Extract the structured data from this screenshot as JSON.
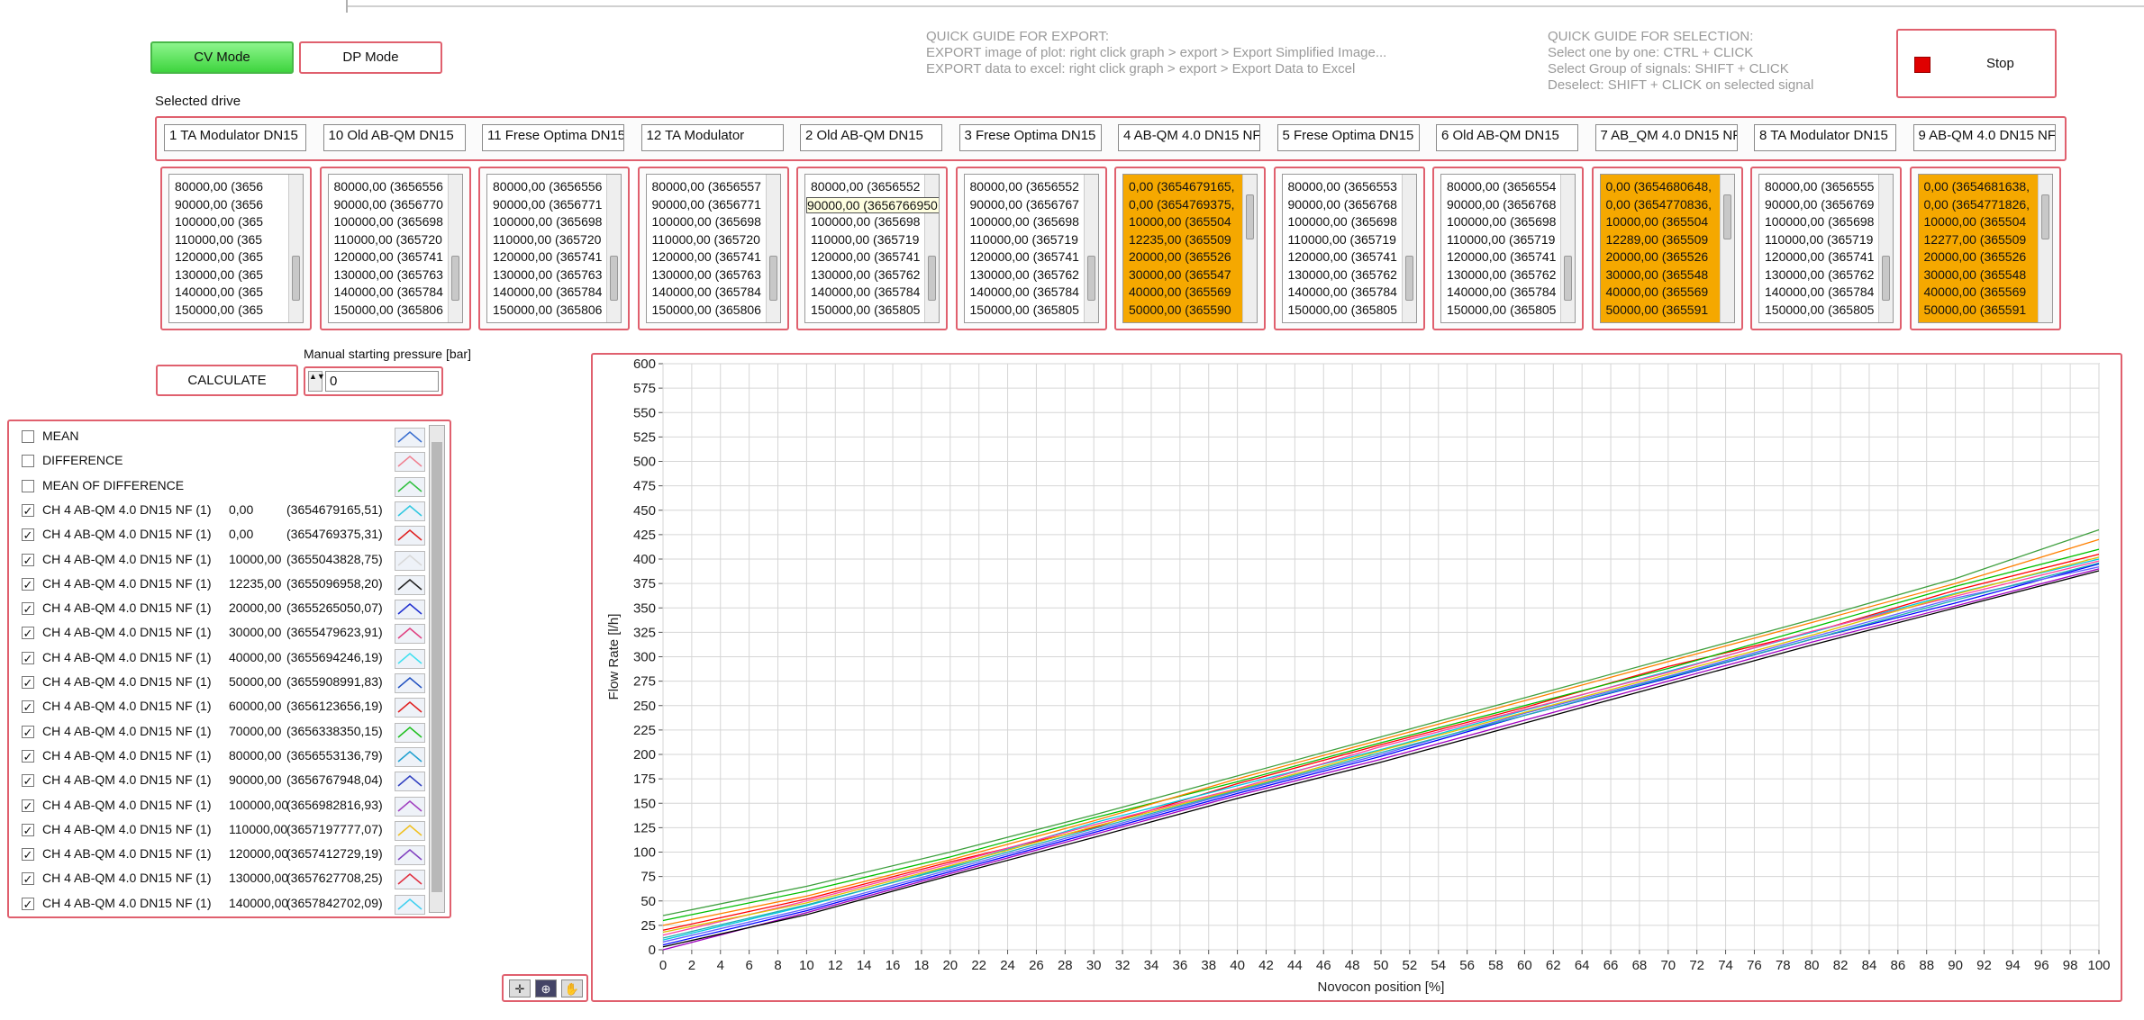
{
  "mode_buttons": [
    {
      "label": "CV Mode",
      "active": true
    },
    {
      "label": "DP Mode",
      "active": false
    }
  ],
  "export_guide": [
    "QUICK GUIDE FOR EXPORT:",
    "EXPORT image of plot: right click graph > export  > Export Simplified Image...",
    "EXPORT data to excel:   right click graph > export  > Export Data to Excel"
  ],
  "selection_guide": [
    "QUICK GUIDE FOR SELECTION:",
    "Select one by one: CTRL +  CLICK",
    "Select Group of signals: SHIFT + CLICK",
    "Deselect: SHIFT + CLICK on selected signal"
  ],
  "stop_button": "Stop",
  "selected_drive_label": "Selected drive",
  "drives": [
    {
      "name": "1  TA Modulator DN15",
      "highlighted": false,
      "items": [
        "80000,00   (3656",
        "90000,00   (3656",
        "100000,00  (365",
        "110000,00  (365",
        "120000,00  (365",
        "130000,00  (365",
        "140000,00  (365",
        "150000,00  (365"
      ]
    },
    {
      "name": "10 Old AB-QM DN15",
      "highlighted": false,
      "items": [
        "80000,00   (3656556",
        "90000,00   (3656770",
        "100000,00  (365698",
        "110000,00  (365720",
        "120000,00  (365741",
        "130000,00  (365763",
        "140000,00  (365784",
        "150000,00  (365806"
      ]
    },
    {
      "name": "11 Frese Optima DN15",
      "highlighted": false,
      "items": [
        "80000,00   (3656556",
        "90000,00   (3656771",
        "100000,00  (365698",
        "110000,00  (365720",
        "120000,00  (365741",
        "130000,00  (365763",
        "140000,00  (365784",
        "150000,00  (365806"
      ]
    },
    {
      "name": "12 TA Modulator",
      "highlighted": false,
      "items": [
        "80000,00   (3656557",
        "90000,00   (3656771",
        "100000,00  (365698",
        "110000,00  (365720",
        "120000,00  (365741",
        "130000,00  (365763",
        "140000,00  (365784",
        "150000,00  (365806"
      ]
    },
    {
      "name": "2 Old AB-QM DN15",
      "highlighted": false,
      "items": [
        "80000,00   (3656552",
        "90000,00   (3656766950,09)",
        "100000,00  (365698",
        "110000,00  (365719",
        "120000,00  (365741",
        "130000,00  (365762",
        "140000,00  (365784",
        "150000,00  (365805"
      ]
    },
    {
      "name": "3 Frese Optima DN15",
      "highlighted": false,
      "items": [
        "80000,00   (3656552",
        "90000,00   (3656767",
        "100000,00  (365698",
        "110000,00  (365719",
        "120000,00  (365741",
        "130000,00  (365762",
        "140000,00  (365784",
        "150000,00  (365805"
      ]
    },
    {
      "name": "4 AB-QM 4.0 DN15 NF",
      "highlighted": true,
      "items": [
        "0,00   (3654679165,",
        "0,00   (3654769375,",
        "10000,00   (365504",
        "12235,00   (365509",
        "20000,00   (365526",
        "30000,00   (365547",
        "40000,00   (365569",
        "50000,00   (365590"
      ]
    },
    {
      "name": "5 Frese Optima DN15",
      "highlighted": false,
      "items": [
        "80000,00   (3656553",
        "90000,00   (3656768",
        "100000,00  (365698",
        "110000,00  (365719",
        "120000,00  (365741",
        "130000,00  (365762",
        "140000,00  (365784",
        "150000,00  (365805"
      ]
    },
    {
      "name": "6 Old AB-QM DN15",
      "highlighted": false,
      "items": [
        "80000,00   (3656554",
        "90000,00   (3656768",
        "100000,00  (365698",
        "110000,00  (365719",
        "120000,00  (365741",
        "130000,00  (365762",
        "140000,00  (365784",
        "150000,00  (365805"
      ]
    },
    {
      "name": "7 AB_QM 4.0 DN15 NF",
      "highlighted": true,
      "items": [
        "0,00   (3654680648,",
        "0,00   (3654770836,",
        "10000,00   (365504",
        "12289,00   (365509",
        "20000,00   (365526",
        "30000,00   (365548",
        "40000,00   (365569",
        "50000,00   (365591"
      ]
    },
    {
      "name": "8 TA Modulator DN15",
      "highlighted": false,
      "items": [
        "80000,00   (3656555",
        "90000,00   (3656769",
        "100000,00  (365698",
        "110000,00  (365719",
        "120000,00  (365741",
        "130000,00  (365762",
        "140000,00  (365784",
        "150000,00  (365805"
      ]
    },
    {
      "name": "9 AB-QM 4.0 DN15 NF",
      "highlighted": true,
      "items": [
        "0,00   (3654681638,",
        "0,00   (3654771826,",
        "10000,00   (365504",
        "12277,00   (365509",
        "20000,00   (365526",
        "30000,00   (365548",
        "40000,00   (365569",
        "50000,00   (365591"
      ]
    }
  ],
  "calculate_button": "CALCULATE",
  "pressure": {
    "label": "Manual starting pressure [bar]",
    "value": "0"
  },
  "signals": [
    {
      "label": "MEAN",
      "checked": false,
      "color": "#3a6fd0"
    },
    {
      "label": "DIFFERENCE",
      "checked": false,
      "color": "#f08090"
    },
    {
      "label": "MEAN OF DIFFERENCE",
      "checked": false,
      "color": "#30c040"
    },
    {
      "label": "CH  4 AB-QM 4.0 DN15 NF (1)",
      "value": "0,00",
      "id": "(3654679165,51)",
      "checked": true,
      "color": "#30c8e0"
    },
    {
      "label": "CH  4 AB-QM 4.0 DN15 NF (1)",
      "value": "0,00",
      "id": "(3654769375,31)",
      "checked": true,
      "color": "#e02020"
    },
    {
      "label": "CH  4 AB-QM 4.0 DN15 NF (1)",
      "value": "10000,00",
      "id": "(3655043828,75)",
      "checked": true,
      "color": "#d8d8d8"
    },
    {
      "label": "CH  4 AB-QM 4.0 DN15 NF (1)",
      "value": "12235,00",
      "id": "(3655096958,20)",
      "checked": true,
      "color": "#202020"
    },
    {
      "label": "CH  4 AB-QM 4.0 DN15 NF (1)",
      "value": "20000,00",
      "id": "(3655265050,07)",
      "checked": true,
      "color": "#2030d0"
    },
    {
      "label": "CH  4 AB-QM 4.0 DN15 NF (1)",
      "value": "30000,00",
      "id": "(3655479623,91)",
      "checked": true,
      "color": "#e04080"
    },
    {
      "label": "CH  4 AB-QM 4.0 DN15 NF (1)",
      "value": "40000,00",
      "id": "(3655694246,19)",
      "checked": true,
      "color": "#40e0f0"
    },
    {
      "label": "CH  4 AB-QM 4.0 DN15 NF (1)",
      "value": "50000,00",
      "id": "(3655908991,83)",
      "checked": true,
      "color": "#2050c0"
    },
    {
      "label": "CH  4 AB-QM 4.0 DN15 NF (1)",
      "value": "60000,00",
      "id": "(3656123656,19)",
      "checked": true,
      "color": "#e02020"
    },
    {
      "label": "CH  4 AB-QM 4.0 DN15 NF (1)",
      "value": "70000,00",
      "id": "(3656338350,15)",
      "checked": true,
      "color": "#20c020"
    },
    {
      "label": "CH  4 AB-QM 4.0 DN15 NF (1)",
      "value": "80000,00",
      "id": "(3656553136,79)",
      "checked": true,
      "color": "#20a0d0"
    },
    {
      "label": "CH  4 AB-QM 4.0 DN15 NF (1)",
      "value": "90000,00",
      "id": "(3656767948,04)",
      "checked": true,
      "color": "#3040c0"
    },
    {
      "label": "CH  4 AB-QM 4.0 DN15 NF (1)",
      "value": "100000,00",
      "id": "(3656982816,93)",
      "checked": true,
      "color": "#a040c0"
    },
    {
      "label": "CH  4 AB-QM 4.0 DN15 NF (1)",
      "value": "110000,00",
      "id": "(3657197777,07)",
      "checked": true,
      "color": "#f0c020"
    },
    {
      "label": "CH  4 AB-QM 4.0 DN15 NF (1)",
      "value": "120000,00",
      "id": "(3657412729,19)",
      "checked": true,
      "color": "#8040c0"
    },
    {
      "label": "CH  4 AB-QM 4.0 DN15 NF (1)",
      "value": "130000,00",
      "id": "(3657627708,25)",
      "checked": true,
      "color": "#e03040"
    },
    {
      "label": "CH  4 AB-QM 4.0 DN15 NF (1)",
      "value": "140000,00",
      "id": "(3657842702,09)",
      "checked": true,
      "color": "#40d0f0"
    }
  ],
  "chart_data": {
    "type": "line",
    "xlabel": "Novocon position [%]",
    "ylabel": "Flow Rate [l/h]",
    "xlim": [
      0,
      100
    ],
    "ylim": [
      0,
      600
    ],
    "xticks": [
      0,
      2,
      4,
      6,
      8,
      10,
      12,
      14,
      16,
      18,
      20,
      22,
      24,
      26,
      28,
      30,
      32,
      34,
      36,
      38,
      40,
      42,
      44,
      46,
      48,
      50,
      52,
      54,
      56,
      58,
      60,
      62,
      64,
      66,
      68,
      70,
      72,
      74,
      76,
      78,
      80,
      82,
      84,
      86,
      88,
      90,
      92,
      94,
      96,
      98,
      100
    ],
    "yticks": [
      0,
      25,
      50,
      75,
      100,
      125,
      150,
      175,
      200,
      225,
      250,
      275,
      300,
      325,
      350,
      375,
      400,
      425,
      450,
      475,
      500,
      525,
      550,
      575,
      600
    ],
    "grid": true,
    "x": [
      0,
      10,
      20,
      30,
      40,
      50,
      60,
      70,
      80,
      90,
      100
    ],
    "series": [
      {
        "color": "#ff0000",
        "values": [
          20,
          52,
          90,
          125,
          170,
          210,
          248,
          290,
          325,
          368,
          405
        ]
      },
      {
        "color": "#0000ff",
        "values": [
          5,
          40,
          80,
          120,
          160,
          198,
          240,
          278,
          318,
          355,
          395
        ]
      },
      {
        "color": "#00c000",
        "values": [
          30,
          60,
          95,
          135,
          172,
          212,
          250,
          288,
          330,
          372,
          410
        ]
      },
      {
        "color": "#00c8e0",
        "values": [
          10,
          45,
          85,
          130,
          168,
          205,
          245,
          285,
          325,
          365,
          400
        ]
      },
      {
        "color": "#a000c0",
        "values": [
          0,
          38,
          78,
          118,
          158,
          195,
          235,
          275,
          315,
          352,
          390
        ]
      },
      {
        "color": "#ff8000",
        "values": [
          25,
          55,
          92,
          132,
          175,
          215,
          255,
          295,
          335,
          375,
          420
        ]
      },
      {
        "color": "#ff40a0",
        "values": [
          15,
          50,
          88,
          128,
          165,
          208,
          246,
          284,
          326,
          362,
          398
        ]
      },
      {
        "color": "#6060ff",
        "values": [
          8,
          42,
          82,
          122,
          162,
          200,
          242,
          280,
          320,
          360,
          392
        ]
      },
      {
        "color": "#40a040",
        "values": [
          35,
          65,
          100,
          138,
          178,
          218,
          258,
          298,
          338,
          380,
          430
        ]
      },
      {
        "color": "#000000",
        "values": [
          3,
          36,
          76,
          115,
          155,
          192,
          232,
          272,
          312,
          350,
          388
        ]
      },
      {
        "color": "#e0c000",
        "values": [
          18,
          48,
          86,
          126,
          164,
          204,
          243,
          282,
          322,
          364,
          402
        ]
      },
      {
        "color": "#20b0b0",
        "values": [
          12,
          46,
          84,
          124,
          163,
          202,
          240,
          279,
          318,
          358,
          396
        ]
      }
    ]
  }
}
